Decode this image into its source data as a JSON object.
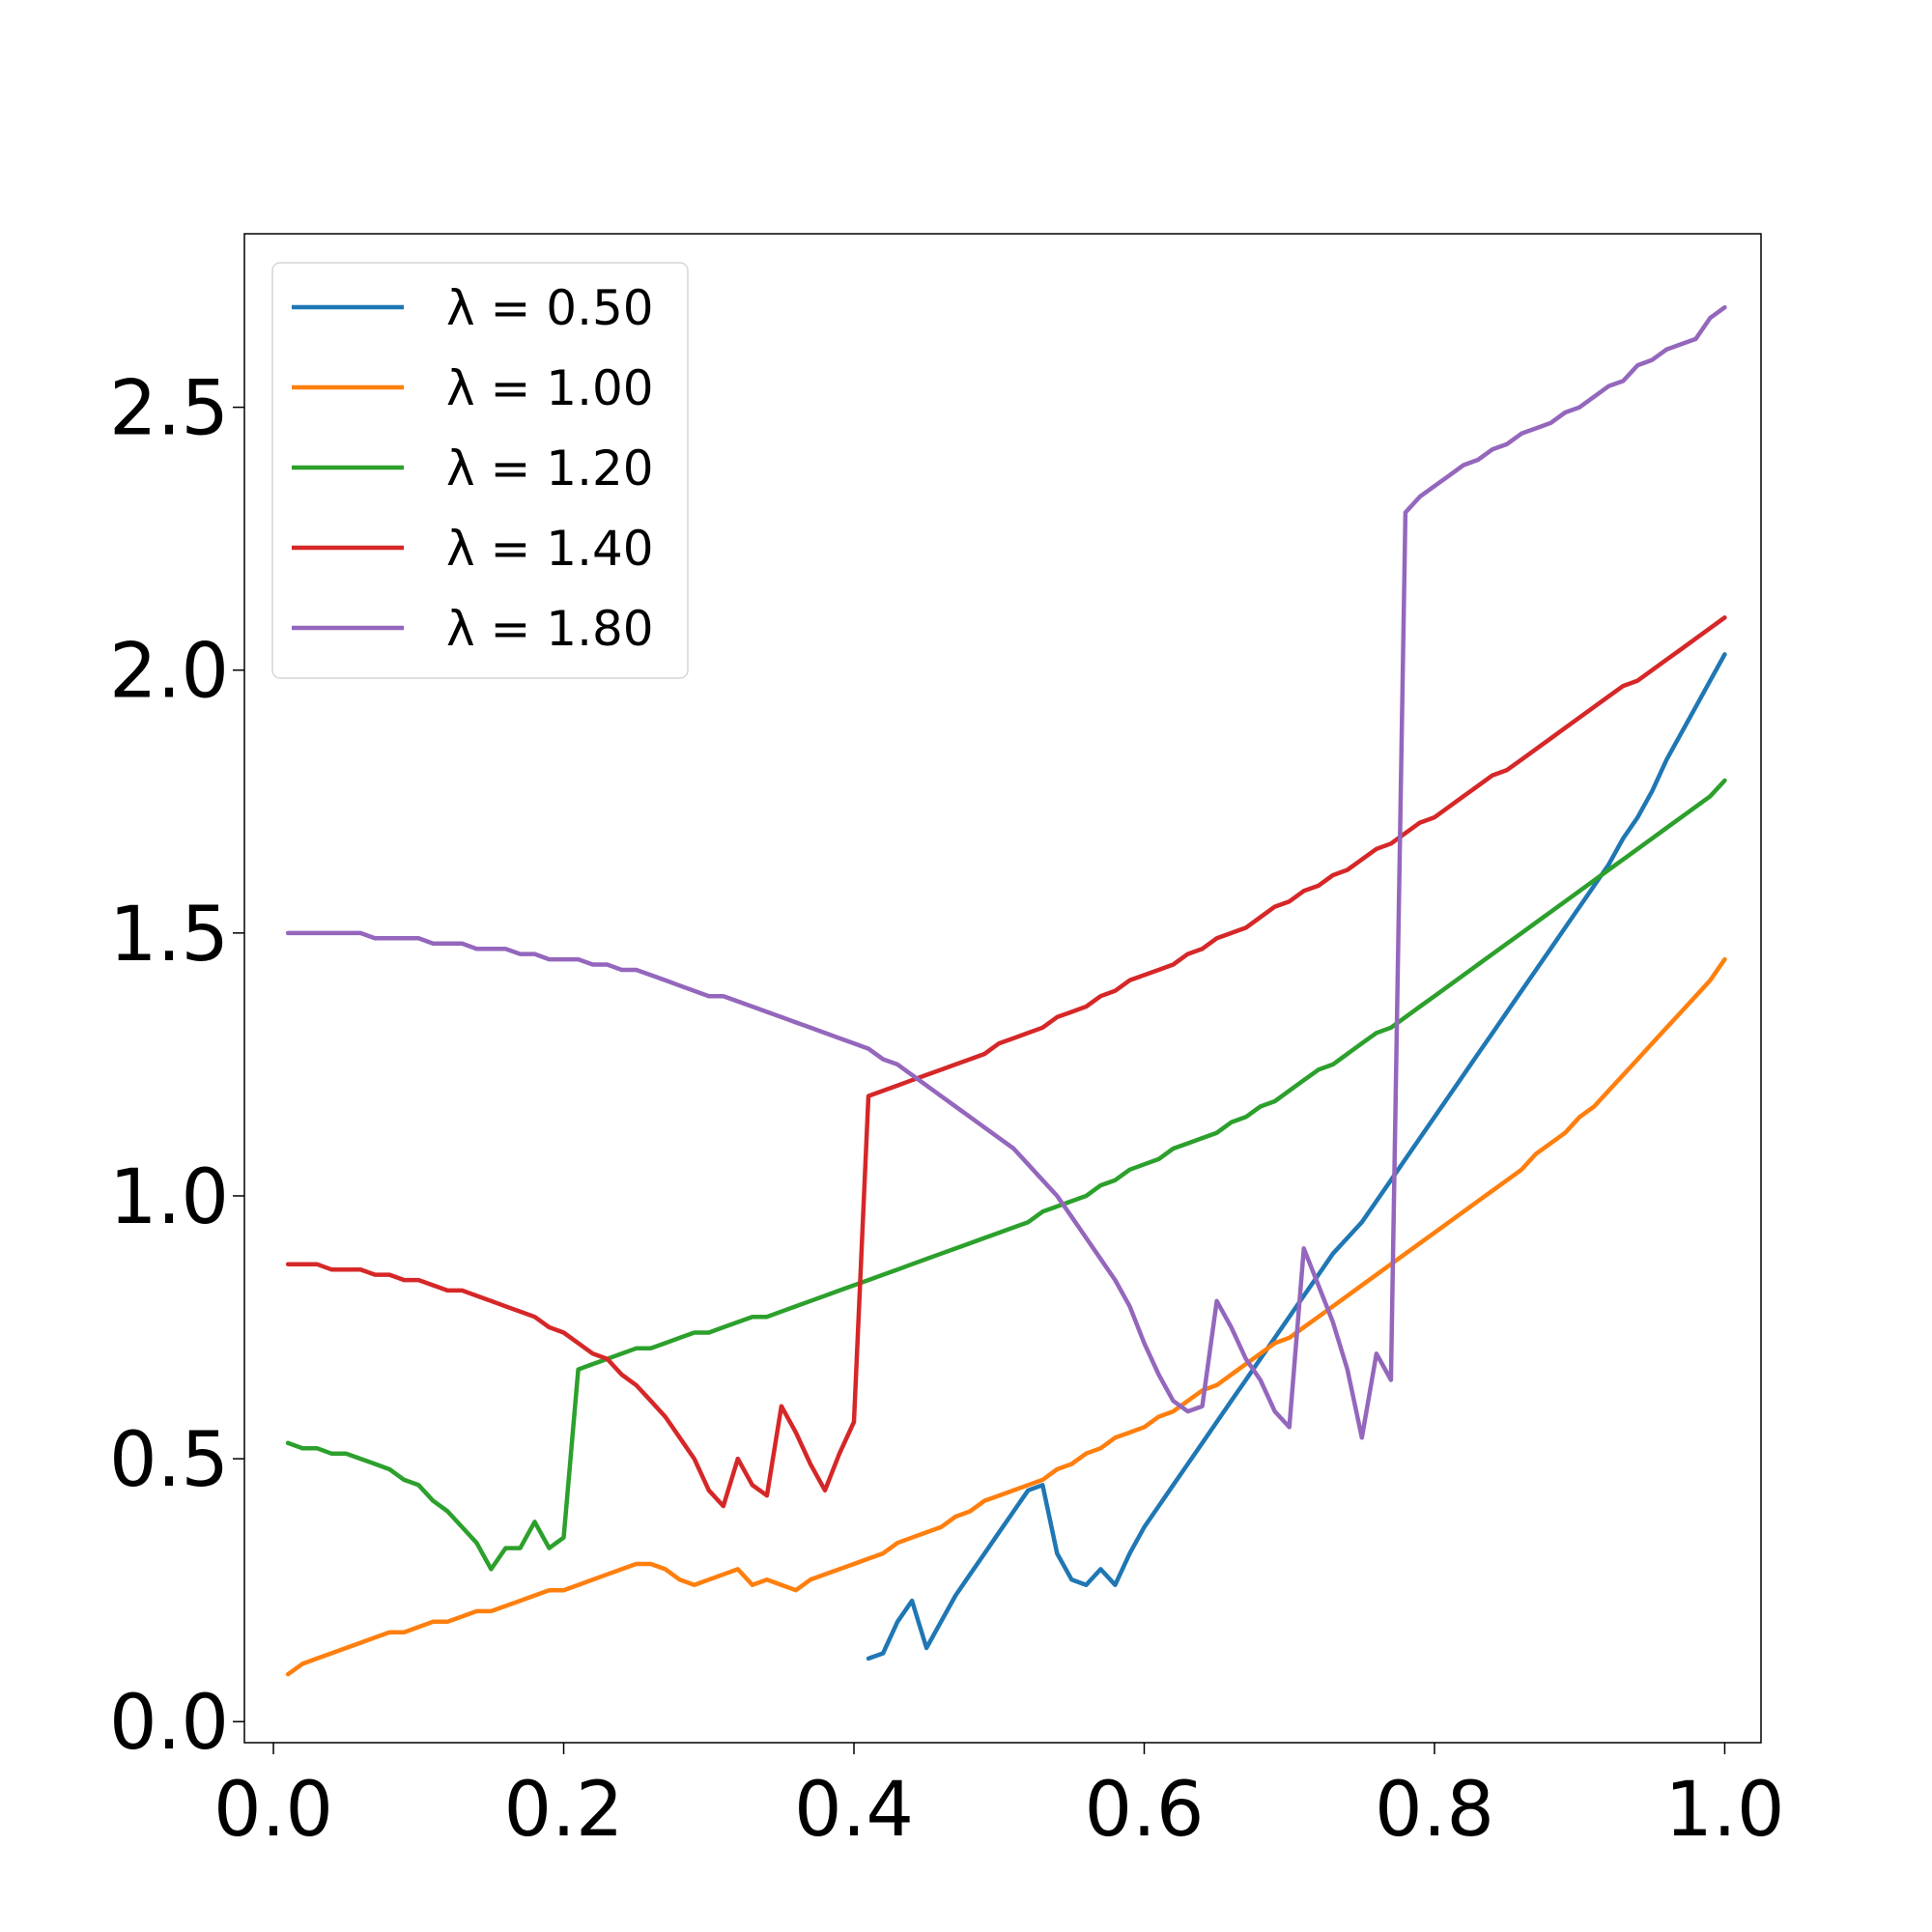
{
  "chart_data": {
    "type": "line",
    "title": "",
    "xlabel": "",
    "ylabel": "",
    "xlim": [
      -0.02,
      1.025
    ],
    "ylim": [
      -0.04,
      2.83
    ],
    "grid": false,
    "legend_placement": "upper-left",
    "x_ticks": [
      {
        "value": 0.0,
        "label": "0.0"
      },
      {
        "value": 0.2,
        "label": "0.2"
      },
      {
        "value": 0.4,
        "label": "0.4"
      },
      {
        "value": 0.6,
        "label": "0.6"
      },
      {
        "value": 0.8,
        "label": "0.8"
      },
      {
        "value": 1.0,
        "label": "1.0"
      }
    ],
    "y_ticks": [
      {
        "value": 0.0,
        "label": "0.0"
      },
      {
        "value": 0.5,
        "label": "0.5"
      },
      {
        "value": 1.0,
        "label": "1.0"
      },
      {
        "value": 1.5,
        "label": "1.5"
      },
      {
        "value": 2.0,
        "label": "2.0"
      },
      {
        "value": 2.5,
        "label": "2.5"
      }
    ],
    "series": [
      {
        "name": "λ = 0.50",
        "color": "#1f77b4",
        "x": [
          0.41,
          0.42,
          0.43,
          0.44,
          0.45,
          0.46,
          0.47,
          0.48,
          0.49,
          0.5,
          0.51,
          0.52,
          0.53,
          0.54,
          0.55,
          0.56,
          0.57,
          0.58,
          0.59,
          0.6,
          0.61,
          0.62,
          0.63,
          0.64,
          0.65,
          0.66,
          0.67,
          0.68,
          0.69,
          0.7,
          0.71,
          0.72,
          0.73,
          0.74,
          0.75,
          0.76,
          0.77,
          0.78,
          0.79,
          0.8,
          0.81,
          0.82,
          0.83,
          0.84,
          0.85,
          0.86,
          0.87,
          0.88,
          0.89,
          0.9,
          0.91,
          0.92,
          0.93,
          0.94,
          0.95,
          0.96,
          0.97,
          0.98,
          0.99,
          1.0
        ],
        "y": [
          0.12,
          0.13,
          0.19,
          0.23,
          0.14,
          0.19,
          0.24,
          0.28,
          0.32,
          0.36,
          0.4,
          0.44,
          0.45,
          0.32,
          0.27,
          0.26,
          0.29,
          0.26,
          0.32,
          0.37,
          0.41,
          0.45,
          0.49,
          0.53,
          0.57,
          0.61,
          0.65,
          0.69,
          0.73,
          0.77,
          0.81,
          0.85,
          0.89,
          0.92,
          0.95,
          0.99,
          1.03,
          1.07,
          1.11,
          1.15,
          1.19,
          1.23,
          1.27,
          1.31,
          1.35,
          1.39,
          1.43,
          1.47,
          1.51,
          1.55,
          1.59,
          1.63,
          1.68,
          1.72,
          1.77,
          1.83,
          1.88,
          1.93,
          1.98,
          2.03
        ]
      },
      {
        "name": "λ = 1.00",
        "color": "#ff7f0e",
        "x": [
          0.01,
          0.02,
          0.03,
          0.04,
          0.05,
          0.06,
          0.07,
          0.08,
          0.09,
          0.1,
          0.11,
          0.12,
          0.13,
          0.14,
          0.15,
          0.16,
          0.17,
          0.18,
          0.19,
          0.2,
          0.21,
          0.22,
          0.23,
          0.24,
          0.25,
          0.26,
          0.27,
          0.28,
          0.29,
          0.3,
          0.31,
          0.32,
          0.33,
          0.34,
          0.35,
          0.36,
          0.37,
          0.38,
          0.39,
          0.4,
          0.41,
          0.42,
          0.43,
          0.44,
          0.45,
          0.46,
          0.47,
          0.48,
          0.49,
          0.5,
          0.51,
          0.52,
          0.53,
          0.54,
          0.55,
          0.56,
          0.57,
          0.58,
          0.59,
          0.6,
          0.61,
          0.62,
          0.63,
          0.64,
          0.65,
          0.66,
          0.67,
          0.68,
          0.69,
          0.7,
          0.71,
          0.72,
          0.73,
          0.74,
          0.75,
          0.76,
          0.77,
          0.78,
          0.79,
          0.8,
          0.81,
          0.82,
          0.83,
          0.84,
          0.85,
          0.86,
          0.87,
          0.88,
          0.89,
          0.9,
          0.91,
          0.92,
          0.93,
          0.94,
          0.95,
          0.96,
          0.97,
          0.98,
          0.99,
          1.0
        ],
        "y": [
          0.09,
          0.11,
          0.12,
          0.13,
          0.14,
          0.15,
          0.16,
          0.17,
          0.17,
          0.18,
          0.19,
          0.19,
          0.2,
          0.21,
          0.21,
          0.22,
          0.23,
          0.24,
          0.25,
          0.25,
          0.26,
          0.27,
          0.28,
          0.29,
          0.3,
          0.3,
          0.29,
          0.27,
          0.26,
          0.27,
          0.28,
          0.29,
          0.26,
          0.27,
          0.26,
          0.25,
          0.27,
          0.28,
          0.29,
          0.3,
          0.31,
          0.32,
          0.34,
          0.35,
          0.36,
          0.37,
          0.39,
          0.4,
          0.42,
          0.43,
          0.44,
          0.45,
          0.46,
          0.48,
          0.49,
          0.51,
          0.52,
          0.54,
          0.55,
          0.56,
          0.58,
          0.59,
          0.61,
          0.63,
          0.64,
          0.66,
          0.68,
          0.7,
          0.72,
          0.73,
          0.75,
          0.77,
          0.79,
          0.81,
          0.83,
          0.85,
          0.87,
          0.89,
          0.91,
          0.93,
          0.95,
          0.97,
          0.99,
          1.01,
          1.03,
          1.05,
          1.08,
          1.1,
          1.12,
          1.15,
          1.17,
          1.2,
          1.23,
          1.26,
          1.29,
          1.32,
          1.35,
          1.38,
          1.41,
          1.45
        ]
      },
      {
        "name": "λ = 1.20",
        "color": "#2ca02c",
        "x": [
          0.01,
          0.02,
          0.03,
          0.04,
          0.05,
          0.06,
          0.07,
          0.08,
          0.09,
          0.1,
          0.11,
          0.12,
          0.13,
          0.14,
          0.15,
          0.16,
          0.17,
          0.18,
          0.19,
          0.2,
          0.21,
          0.22,
          0.23,
          0.24,
          0.25,
          0.26,
          0.27,
          0.28,
          0.29,
          0.3,
          0.31,
          0.32,
          0.33,
          0.34,
          0.35,
          0.36,
          0.37,
          0.38,
          0.39,
          0.4,
          0.41,
          0.42,
          0.43,
          0.44,
          0.45,
          0.46,
          0.47,
          0.48,
          0.49,
          0.5,
          0.51,
          0.52,
          0.53,
          0.54,
          0.55,
          0.56,
          0.57,
          0.58,
          0.59,
          0.6,
          0.61,
          0.62,
          0.63,
          0.64,
          0.65,
          0.66,
          0.67,
          0.68,
          0.69,
          0.7,
          0.71,
          0.72,
          0.73,
          0.74,
          0.75,
          0.76,
          0.77,
          0.78,
          0.79,
          0.8,
          0.81,
          0.82,
          0.83,
          0.84,
          0.85,
          0.86,
          0.87,
          0.88,
          0.89,
          0.9,
          0.91,
          0.92,
          0.93,
          0.94,
          0.95,
          0.96,
          0.97,
          0.98,
          0.99,
          1.0
        ],
        "y": [
          0.53,
          0.52,
          0.52,
          0.51,
          0.51,
          0.5,
          0.49,
          0.48,
          0.46,
          0.45,
          0.42,
          0.4,
          0.37,
          0.34,
          0.29,
          0.33,
          0.33,
          0.38,
          0.33,
          0.35,
          0.67,
          0.68,
          0.69,
          0.7,
          0.71,
          0.71,
          0.72,
          0.73,
          0.74,
          0.74,
          0.75,
          0.76,
          0.77,
          0.77,
          0.78,
          0.79,
          0.8,
          0.81,
          0.82,
          0.83,
          0.84,
          0.85,
          0.86,
          0.87,
          0.88,
          0.89,
          0.9,
          0.91,
          0.92,
          0.93,
          0.94,
          0.95,
          0.97,
          0.98,
          0.99,
          1.0,
          1.02,
          1.03,
          1.05,
          1.06,
          1.07,
          1.09,
          1.1,
          1.11,
          1.12,
          1.14,
          1.15,
          1.17,
          1.18,
          1.2,
          1.22,
          1.24,
          1.25,
          1.27,
          1.29,
          1.31,
          1.32,
          1.34,
          1.36,
          1.38,
          1.4,
          1.42,
          1.44,
          1.46,
          1.48,
          1.5,
          1.52,
          1.54,
          1.56,
          1.58,
          1.6,
          1.62,
          1.64,
          1.66,
          1.68,
          1.7,
          1.72,
          1.74,
          1.76,
          1.79
        ]
      },
      {
        "name": "λ = 1.40",
        "color": "#d62728",
        "x": [
          0.01,
          0.02,
          0.03,
          0.04,
          0.05,
          0.06,
          0.07,
          0.08,
          0.09,
          0.1,
          0.11,
          0.12,
          0.13,
          0.14,
          0.15,
          0.16,
          0.17,
          0.18,
          0.19,
          0.2,
          0.21,
          0.22,
          0.23,
          0.24,
          0.25,
          0.26,
          0.27,
          0.28,
          0.29,
          0.3,
          0.31,
          0.32,
          0.33,
          0.34,
          0.35,
          0.36,
          0.37,
          0.38,
          0.39,
          0.4,
          0.41,
          0.42,
          0.43,
          0.44,
          0.45,
          0.46,
          0.47,
          0.48,
          0.49,
          0.5,
          0.51,
          0.52,
          0.53,
          0.54,
          0.55,
          0.56,
          0.57,
          0.58,
          0.59,
          0.6,
          0.61,
          0.62,
          0.63,
          0.64,
          0.65,
          0.66,
          0.67,
          0.68,
          0.69,
          0.7,
          0.71,
          0.72,
          0.73,
          0.74,
          0.75,
          0.76,
          0.77,
          0.78,
          0.79,
          0.8,
          0.81,
          0.82,
          0.83,
          0.84,
          0.85,
          0.86,
          0.87,
          0.88,
          0.89,
          0.9,
          0.91,
          0.92,
          0.93,
          0.94,
          0.95,
          0.96,
          0.97,
          0.98,
          0.99,
          1.0
        ],
        "y": [
          0.87,
          0.87,
          0.87,
          0.86,
          0.86,
          0.86,
          0.85,
          0.85,
          0.84,
          0.84,
          0.83,
          0.82,
          0.82,
          0.81,
          0.8,
          0.79,
          0.78,
          0.77,
          0.75,
          0.74,
          0.72,
          0.7,
          0.69,
          0.66,
          0.64,
          0.61,
          0.58,
          0.54,
          0.5,
          0.44,
          0.41,
          0.5,
          0.45,
          0.43,
          0.6,
          0.55,
          0.49,
          0.44,
          0.51,
          0.57,
          1.19,
          1.2,
          1.21,
          1.22,
          1.23,
          1.24,
          1.25,
          1.26,
          1.27,
          1.29,
          1.3,
          1.31,
          1.32,
          1.34,
          1.35,
          1.36,
          1.38,
          1.39,
          1.41,
          1.42,
          1.43,
          1.44,
          1.46,
          1.47,
          1.49,
          1.5,
          1.51,
          1.53,
          1.55,
          1.56,
          1.58,
          1.59,
          1.61,
          1.62,
          1.64,
          1.66,
          1.67,
          1.69,
          1.71,
          1.72,
          1.74,
          1.76,
          1.78,
          1.8,
          1.81,
          1.83,
          1.85,
          1.87,
          1.89,
          1.91,
          1.93,
          1.95,
          1.97,
          1.98,
          2.0,
          2.02,
          2.04,
          2.06,
          2.08,
          2.1
        ]
      },
      {
        "name": "λ = 1.80",
        "color": "#9467bd",
        "x": [
          0.01,
          0.02,
          0.03,
          0.04,
          0.05,
          0.06,
          0.07,
          0.08,
          0.09,
          0.1,
          0.11,
          0.12,
          0.13,
          0.14,
          0.15,
          0.16,
          0.17,
          0.18,
          0.19,
          0.2,
          0.21,
          0.22,
          0.23,
          0.24,
          0.25,
          0.26,
          0.27,
          0.28,
          0.29,
          0.3,
          0.31,
          0.32,
          0.33,
          0.34,
          0.35,
          0.36,
          0.37,
          0.38,
          0.39,
          0.4,
          0.41,
          0.42,
          0.43,
          0.44,
          0.45,
          0.46,
          0.47,
          0.48,
          0.49,
          0.5,
          0.51,
          0.52,
          0.53,
          0.54,
          0.55,
          0.56,
          0.57,
          0.58,
          0.59,
          0.6,
          0.61,
          0.62,
          0.63,
          0.64,
          0.65,
          0.66,
          0.67,
          0.68,
          0.69,
          0.7,
          0.71,
          0.72,
          0.73,
          0.74,
          0.75,
          0.76,
          0.77,
          0.78,
          0.79,
          0.8,
          0.81,
          0.82,
          0.83,
          0.84,
          0.85,
          0.86,
          0.87,
          0.88,
          0.89,
          0.9,
          0.91,
          0.92,
          0.93,
          0.94,
          0.95,
          0.96,
          0.97,
          0.98,
          0.99,
          1.0
        ],
        "y": [
          1.5,
          1.5,
          1.5,
          1.5,
          1.5,
          1.5,
          1.49,
          1.49,
          1.49,
          1.49,
          1.48,
          1.48,
          1.48,
          1.47,
          1.47,
          1.47,
          1.46,
          1.46,
          1.45,
          1.45,
          1.45,
          1.44,
          1.44,
          1.43,
          1.43,
          1.42,
          1.41,
          1.4,
          1.39,
          1.38,
          1.38,
          1.37,
          1.36,
          1.35,
          1.34,
          1.33,
          1.32,
          1.31,
          1.3,
          1.29,
          1.28,
          1.26,
          1.25,
          1.23,
          1.21,
          1.19,
          1.17,
          1.15,
          1.13,
          1.11,
          1.09,
          1.06,
          1.03,
          1.0,
          0.96,
          0.92,
          0.88,
          0.84,
          0.79,
          0.72,
          0.66,
          0.61,
          0.59,
          0.6,
          0.8,
          0.75,
          0.69,
          0.65,
          0.59,
          0.56,
          0.9,
          0.83,
          0.76,
          0.67,
          0.54,
          0.7,
          0.65,
          2.3,
          2.33,
          2.35,
          2.37,
          2.39,
          2.4,
          2.42,
          2.43,
          2.45,
          2.46,
          2.47,
          2.49,
          2.5,
          2.52,
          2.54,
          2.55,
          2.58,
          2.59,
          2.61,
          2.62,
          2.63,
          2.67,
          2.69
        ]
      }
    ]
  }
}
